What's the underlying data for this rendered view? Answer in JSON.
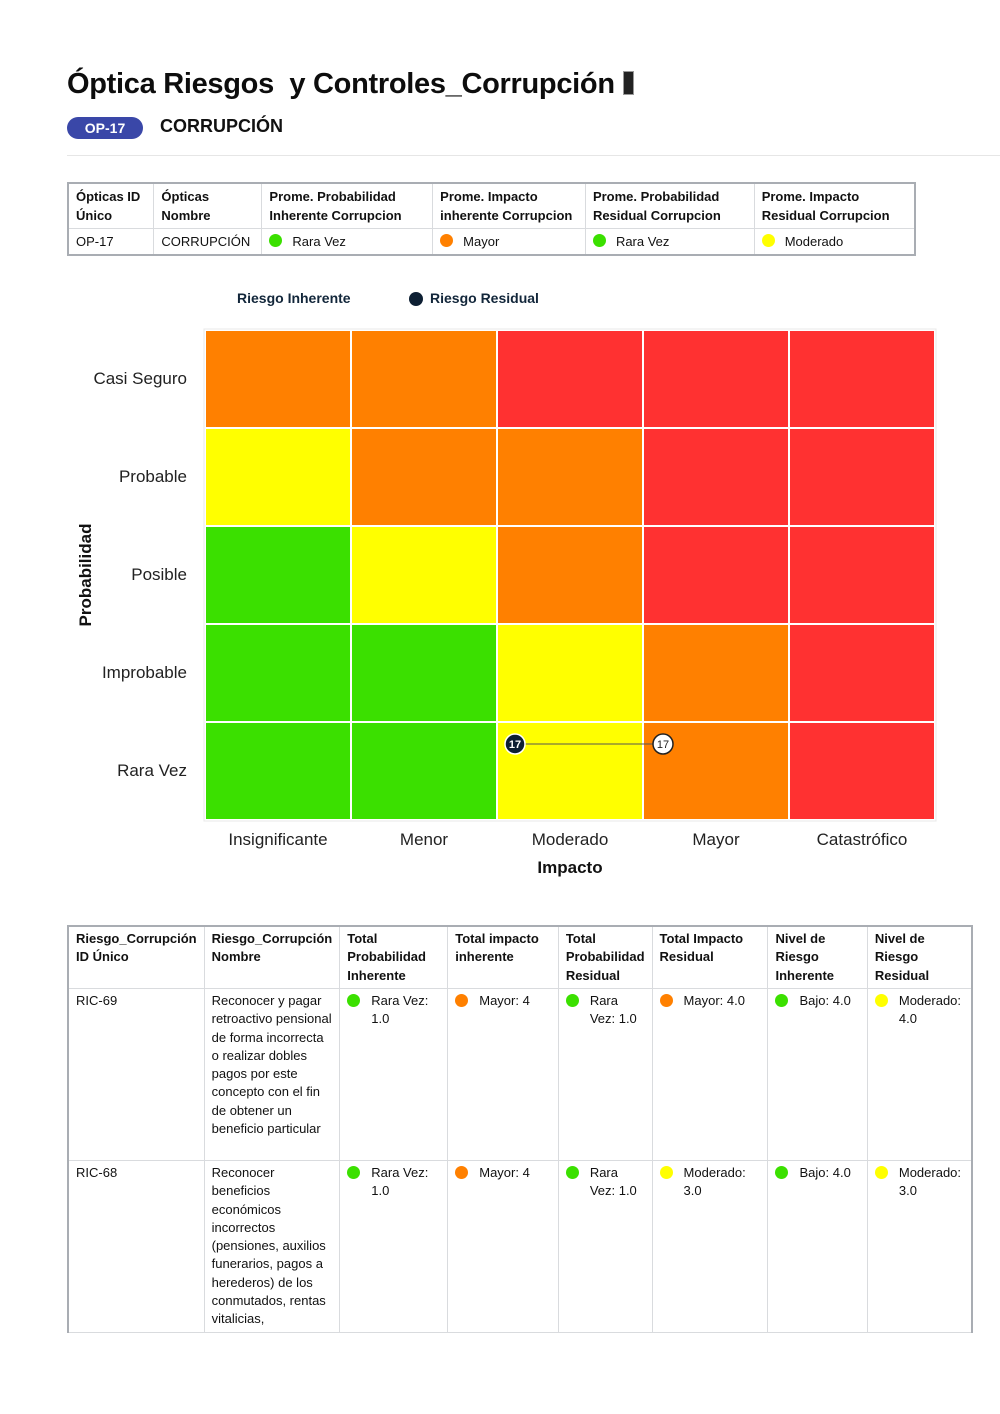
{
  "header": {
    "title": "Óptica Riesgos  y Controles_Corrupción",
    "title_icon": "missing-glyph-icon",
    "badge": "OP-17",
    "subtitle": "CORRUPCIÓN"
  },
  "colors": {
    "green": "#3BE000",
    "yellow": "#FFFF00",
    "orange": "#FF8000",
    "red": "#FF3131",
    "badge": "#3A47A8",
    "residual_marker": "#0D1F33"
  },
  "summary_table": {
    "headers": [
      [
        "Ópticas ID",
        "Único"
      ],
      [
        "Ópticas",
        "Nombre"
      ],
      [
        "Prome. Probabilidad",
        "Inherente Corrupcion"
      ],
      [
        "Prome. Impacto",
        "inherente Corrupcion"
      ],
      [
        "Prome. Probabilidad",
        "Residual Corrupcion"
      ],
      [
        "Prome. Impacto",
        "Residual Corrupcion"
      ]
    ],
    "row": {
      "id": "OP-17",
      "nombre": "CORRUPCIÓN",
      "prob_inherente": {
        "label": "Rara Vez",
        "color": "#3BE000"
      },
      "impacto_inherente": {
        "label": "Mayor",
        "color": "#FF8000"
      },
      "prob_residual": {
        "label": "Rara Vez",
        "color": "#3BE000"
      },
      "impacto_residual": {
        "label": "Moderado",
        "color": "#FFFF00"
      }
    }
  },
  "chart_data": {
    "type": "heatmap",
    "title": "",
    "xlabel": "Impacto",
    "ylabel": "Probabilidad",
    "x_categories": [
      "Insignificante",
      "Menor",
      "Moderado",
      "Mayor",
      "Catastrófico"
    ],
    "y_categories": [
      "Casi Seguro",
      "Probable",
      "Posible",
      "Improbable",
      "Rara Vez"
    ],
    "legend": [
      {
        "name": "Riesgo Inherente",
        "marker": "white-circle"
      },
      {
        "name": "Riesgo Residual",
        "marker": "dark-circle"
      }
    ],
    "legend_position": "top",
    "cells": [
      [
        "orange",
        "orange",
        "red",
        "red",
        "red"
      ],
      [
        "yellow",
        "orange",
        "orange",
        "red",
        "red"
      ],
      [
        "green",
        "yellow",
        "orange",
        "red",
        "red"
      ],
      [
        "green",
        "green",
        "yellow",
        "orange",
        "red"
      ],
      [
        "green",
        "green",
        "yellow",
        "orange",
        "red"
      ]
    ],
    "points": [
      {
        "series": "Riesgo Residual",
        "label": "17",
        "x": "Moderado",
        "y": "Rara Vez"
      },
      {
        "series": "Riesgo Inherente",
        "label": "17",
        "x": "Mayor",
        "y": "Rara Vez"
      }
    ],
    "connector": {
      "from": "Riesgo Residual",
      "to": "Riesgo Inherente"
    }
  },
  "detail_table": {
    "headers": [
      "Riesgo_Corrupción ID Único",
      "Riesgo_Corrupción Nombre",
      "Total Probabilidad Inherente",
      "Total impacto inherente",
      "Total Probabilidad Residual",
      "Total Impacto Residual",
      "Nivel de Riesgo Inherente",
      "Nivel de Riesgo Residual"
    ],
    "rows": [
      {
        "id": "RIC-69",
        "nombre": "Reconocer y pagar retroactivo pensional de forma incorrecta o realizar dobles pagos por este concepto con el fin de obtener un beneficio particular",
        "prob_inherente": {
          "label": "Rara Vez: 1.0",
          "color": "#3BE000"
        },
        "impacto_inherente": {
          "label": "Mayor: 4",
          "color": "#FF8000"
        },
        "prob_residual": {
          "label": "Rara Vez: 1.0",
          "color": "#3BE000"
        },
        "impacto_residual": {
          "label": "Mayor: 4.0",
          "color": "#FF8000"
        },
        "nivel_inherente": {
          "label": "Bajo: 4.0",
          "color": "#3BE000"
        },
        "nivel_residual": {
          "label": "Moderado: 4.0",
          "color": "#FFFF00"
        }
      },
      {
        "id": "RIC-68",
        "nombre": "Reconocer beneficios económicos incorrectos (pensiones, auxilios funerarios, pagos a herederos) de los conmutados, rentas vitalicias,",
        "prob_inherente": {
          "label": "Rara Vez: 1.0",
          "color": "#3BE000"
        },
        "impacto_inherente": {
          "label": "Mayor: 4",
          "color": "#FF8000"
        },
        "prob_residual": {
          "label": "Rara Vez: 1.0",
          "color": "#3BE000"
        },
        "impacto_residual": {
          "label": "Moderado: 3.0",
          "color": "#FFFF00"
        },
        "nivel_inherente": {
          "label": "Bajo: 4.0",
          "color": "#3BE000"
        },
        "nivel_residual": {
          "label": "Moderado: 3.0",
          "color": "#FFFF00"
        }
      }
    ]
  }
}
